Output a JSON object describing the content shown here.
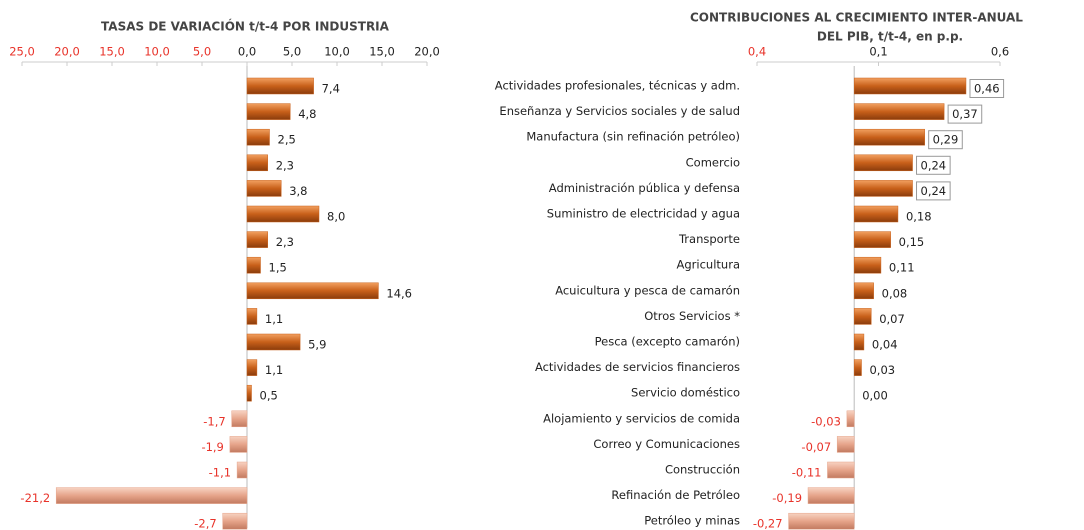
{
  "chart_data": [
    {
      "type": "bar",
      "orientation": "horizontal",
      "title": "TASAS DE VARIACIÓN t/t-4 POR INDUSTRIA",
      "categories": [
        "Actividades profesionales, técnicas y adm.",
        "Enseñanza  y Servicios sociales y de salud",
        "Manufactura (sin refinación petróleo)",
        "Comercio",
        "Administración pública y defensa",
        "Suministro de electricidad y agua",
        "Transporte",
        "Agricultura",
        "Acuicultura y pesca de camarón",
        "Otros Servicios *",
        "Pesca (excepto camarón)",
        "Actividades de servicios financieros",
        "Servicio doméstico",
        "Alojamiento y servicios de comida",
        "Correo y Comunicaciones",
        "Construcción",
        "Refinación de Petróleo",
        "Petróleo y minas"
      ],
      "values": [
        7.4,
        4.8,
        2.5,
        2.3,
        3.8,
        8.0,
        2.3,
        1.5,
        14.6,
        1.1,
        5.9,
        1.1,
        0.5,
        -1.7,
        -1.9,
        -1.1,
        -21.2,
        -2.7
      ],
      "value_labels": [
        "7,4",
        "4,8",
        "2,5",
        "2,3",
        "3,8",
        "8,0",
        "2,3",
        "1,5",
        "14,6",
        "1,1",
        "5,9",
        "1,1",
        "0,5",
        "-1,7",
        "-1,9",
        "-1,1",
        "-21,2",
        "-2,7"
      ],
      "xlim": [
        -25,
        20
      ],
      "xticks": [
        {
          "value": -25,
          "label": "25,0"
        },
        {
          "value": -20,
          "label": "20,0"
        },
        {
          "value": -15,
          "label": "15,0"
        },
        {
          "value": -10,
          "label": "10,0"
        },
        {
          "value": -5,
          "label": "5,0"
        },
        {
          "value": 0,
          "label": "0,0"
        },
        {
          "value": 5,
          "label": "5,0"
        },
        {
          "value": 10,
          "label": "10,0"
        },
        {
          "value": 15,
          "label": "15,0"
        },
        {
          "value": 20,
          "label": "20,0"
        }
      ],
      "color": "#c8601a",
      "negative_color": "#e6a48a"
    },
    {
      "type": "bar",
      "orientation": "horizontal",
      "title": [
        "CONTRIBUCIONES AL CRECIMIENTO INTER-ANUAL",
        "DEL PIB, t/t-4, en p.p."
      ],
      "values": [
        0.46,
        0.37,
        0.29,
        0.24,
        0.24,
        0.18,
        0.15,
        0.11,
        0.08,
        0.07,
        0.04,
        0.03,
        0.0,
        -0.03,
        -0.07,
        -0.11,
        -0.19,
        -0.27
      ],
      "value_labels": [
        "0,46",
        "0,37",
        "0,29",
        "0,24",
        "0,24",
        "0,18",
        "0,15",
        "0,11",
        "0,08",
        "0,07",
        "0,04",
        "0,03",
        "0,00",
        "-0,03",
        "-0,07",
        "-0,11",
        "-0,19",
        "-0,27"
      ],
      "xlim": [
        -0.4,
        0.6
      ],
      "xticks": [
        {
          "value": -0.4,
          "label": "0,4"
        },
        {
          "value": 0.1,
          "label": "0,1"
        },
        {
          "value": 0.6,
          "label": "0,6"
        }
      ],
      "color": "#c8601a",
      "negative_color": "#e6a48a"
    }
  ]
}
